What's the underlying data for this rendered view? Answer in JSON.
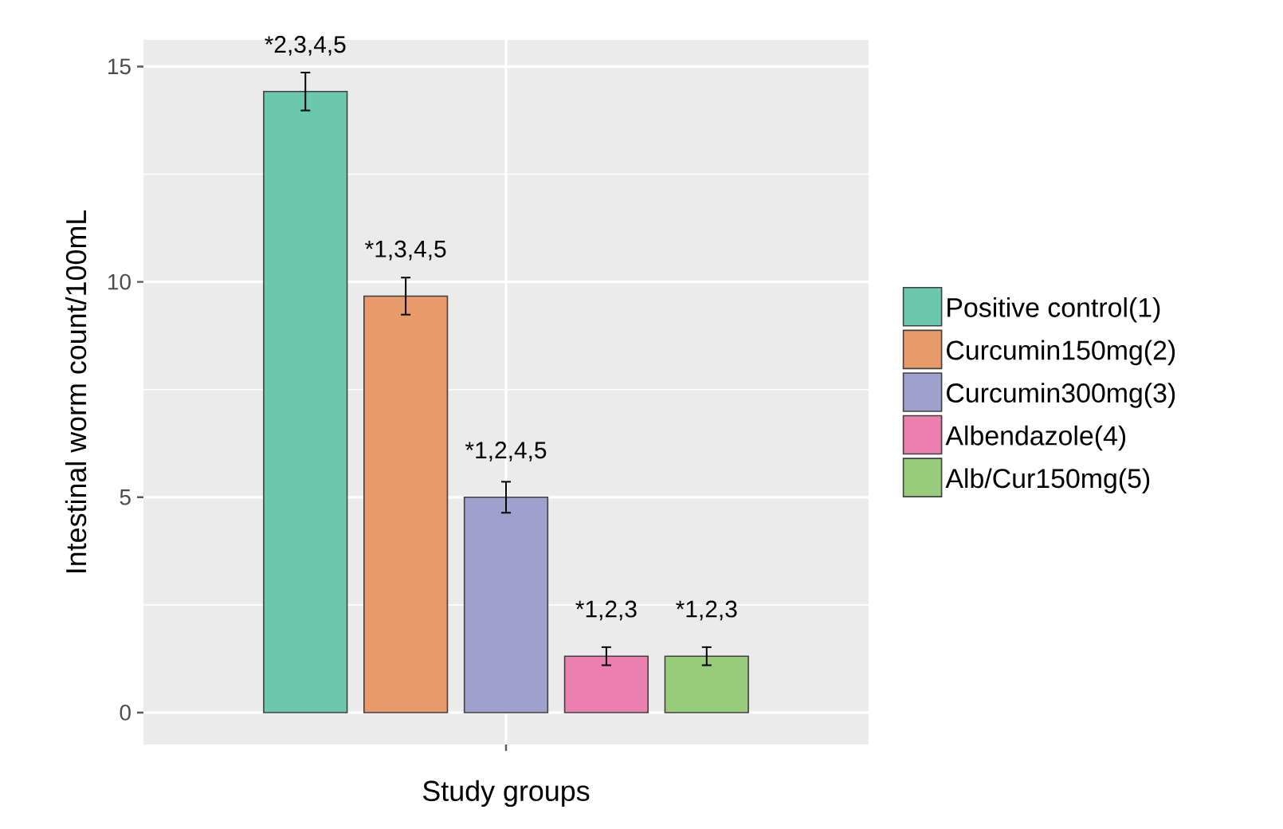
{
  "chart_data": {
    "type": "bar",
    "xlabel": "Study groups",
    "ylabel": "Intestinal worm count/100mL",
    "categories": [
      null
    ],
    "series": [
      {
        "name": "Positive control(1)",
        "color": "#6cc8ac",
        "values": [
          14.42
        ],
        "errors": [
          0.44
        ]
      },
      {
        "name": "Curcumin150mg(2)",
        "color": "#e89a6a",
        "values": [
          9.67
        ],
        "errors": [
          0.43
        ]
      },
      {
        "name": "Curcumin300mg(3)",
        "color": "#a0a0cc",
        "values": [
          5.0
        ],
        "errors": [
          0.36
        ]
      },
      {
        "name": "Albendazole(4)",
        "color": "#ea7fb0",
        "values": [
          1.31
        ],
        "errors": [
          0.21
        ]
      },
      {
        "name": "Alb/Cur150mg(5)",
        "color": "#98cc7a",
        "values": [
          1.31
        ],
        "errors": [
          0.21
        ]
      }
    ],
    "annotations": [
      {
        "text": "*2,3,4,5",
        "y": 14.42
      },
      {
        "text": "*1,3,4,5",
        "y": 9.67
      },
      {
        "text": "*1,2,4,5",
        "y": 5.0
      },
      {
        "text": "*1,2,3",
        "y": 1.31
      },
      {
        "text": "*1,2,3",
        "y": 1.31
      }
    ],
    "ylim": [
      -0.74,
      15.62
    ],
    "yticks": [
      0,
      5,
      10,
      15
    ],
    "grid": true,
    "legend": "right"
  }
}
